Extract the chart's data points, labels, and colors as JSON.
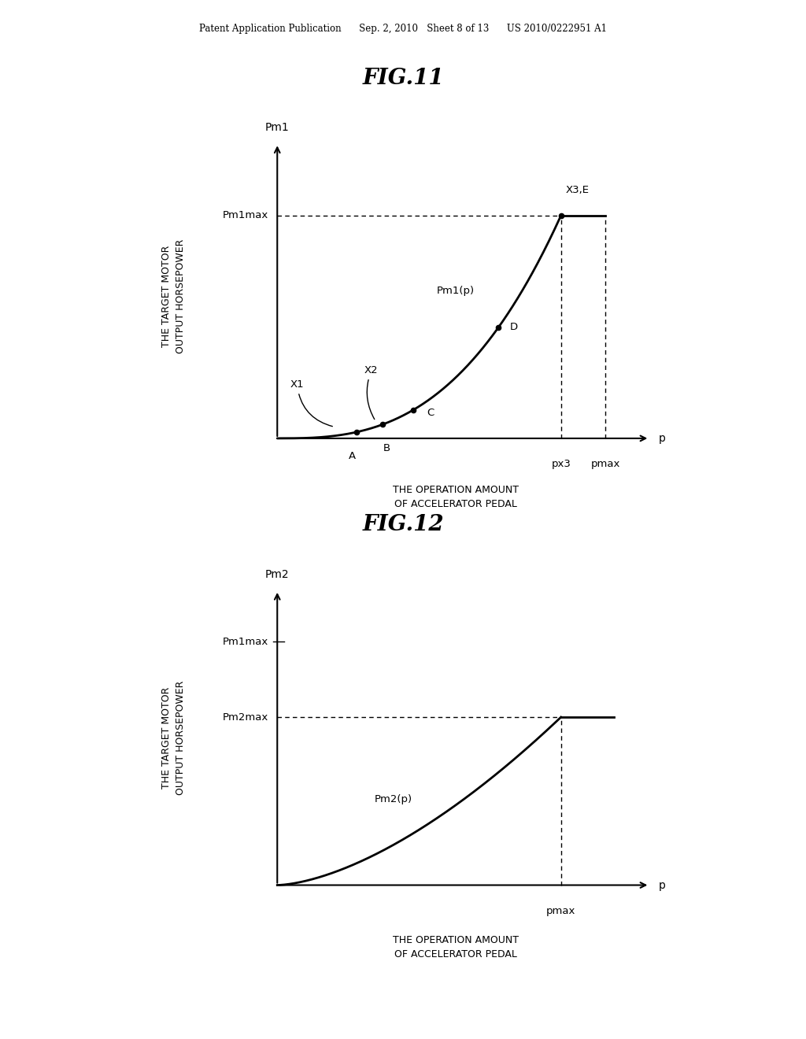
{
  "bg_color": "#ffffff",
  "header_text": "Patent Application Publication      Sep. 2, 2010   Sheet 8 of 13      US 2010/0222951 A1",
  "fig11_title": "FIG.11",
  "fig12_title": "FIG.12",
  "fig11_ylabel": "THE TARGET MOTOR\nOUTPUT HORSEPOWER",
  "fig11_xlabel": "THE OPERATION AMOUNT\nOF ACCELERATOR PEDAL",
  "fig11_yaxis_label": "Pm1",
  "fig11_xaxis_label": "p",
  "fig12_ylabel": "THE TARGET MOTOR\nOUTPUT HORSEPOWER",
  "fig12_xlabel": "THE OPERATION AMOUNT\nOF ACCELERATOR PEDAL",
  "fig12_yaxis_label": "Pm2",
  "fig12_xaxis_label": "p",
  "fig11_pm1max_label": "Pm1max",
  "fig11_pm1p_label": "Pm1(p)",
  "fig11_px3_label": "px3",
  "fig11_pmax_label": "pmax",
  "fig11_x3e_label": "X3,E",
  "fig11_pointA_label": "A",
  "fig11_pointB_label": "B",
  "fig11_pointC_label": "C",
  "fig11_pointD_label": "D",
  "fig11_x1_label": "X1",
  "fig11_x2_label": "X2",
  "fig12_pm1max_label": "Pm1max",
  "fig12_pm2max_label": "Pm2max",
  "fig12_pm2p_label": "Pm2(p)",
  "fig12_pmax_label": "pmax"
}
